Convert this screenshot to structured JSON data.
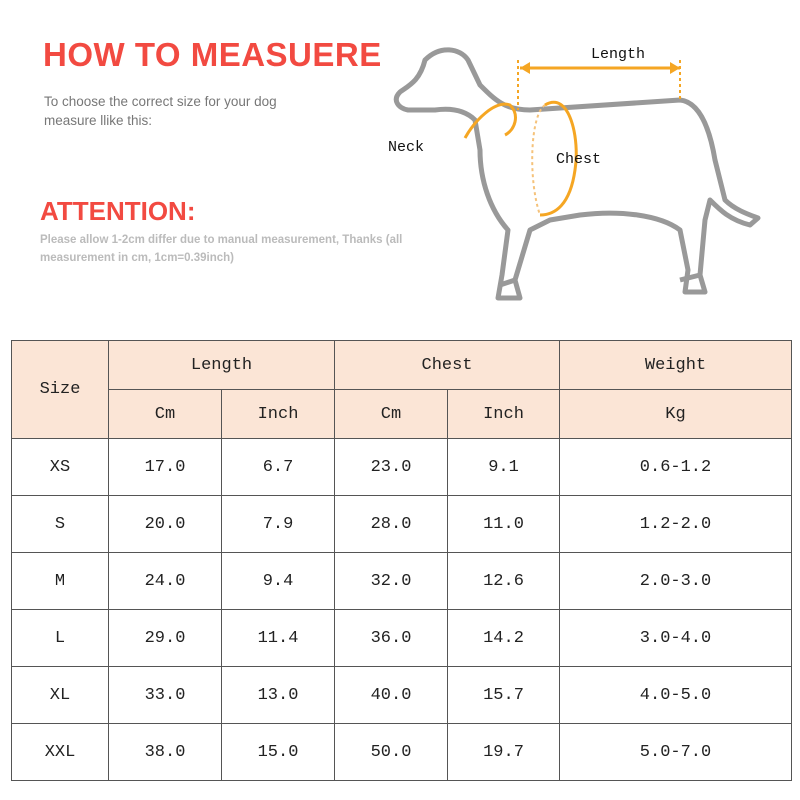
{
  "heading": "HOW TO MEASUERE",
  "instructions": "To choose the correct size for your dog measure llike this:",
  "attention": {
    "title": "ATTENTION:",
    "note": "Please allow 1-2cm differ due to manual measurement, Thanks (all measurement in cm, 1cm=0.39inch)"
  },
  "diagram": {
    "length": "Length",
    "neck": "Neck",
    "chest": "Chest"
  },
  "colors": {
    "accent": "#f24a41",
    "header_bg": "#fbe5d6",
    "arrow": "#f5a623"
  },
  "table": {
    "size_header": "Size",
    "groups": [
      "Length",
      "Chest",
      "Weight"
    ],
    "units": [
      "Cm",
      "Inch",
      "Cm",
      "Inch",
      "Kg"
    ],
    "rows": [
      [
        "XS",
        "17.0",
        "6.7",
        "23.0",
        "9.1",
        "0.6-1.2"
      ],
      [
        "S",
        "20.0",
        "7.9",
        "28.0",
        "11.0",
        "1.2-2.0"
      ],
      [
        "M",
        "24.0",
        "9.4",
        "32.0",
        "12.6",
        "2.0-3.0"
      ],
      [
        "L",
        "29.0",
        "11.4",
        "36.0",
        "14.2",
        "3.0-4.0"
      ],
      [
        "XL",
        "33.0",
        "13.0",
        "40.0",
        "15.7",
        "4.0-5.0"
      ],
      [
        "XXL",
        "38.0",
        "15.0",
        "50.0",
        "19.7",
        "5.0-7.0"
      ]
    ]
  }
}
